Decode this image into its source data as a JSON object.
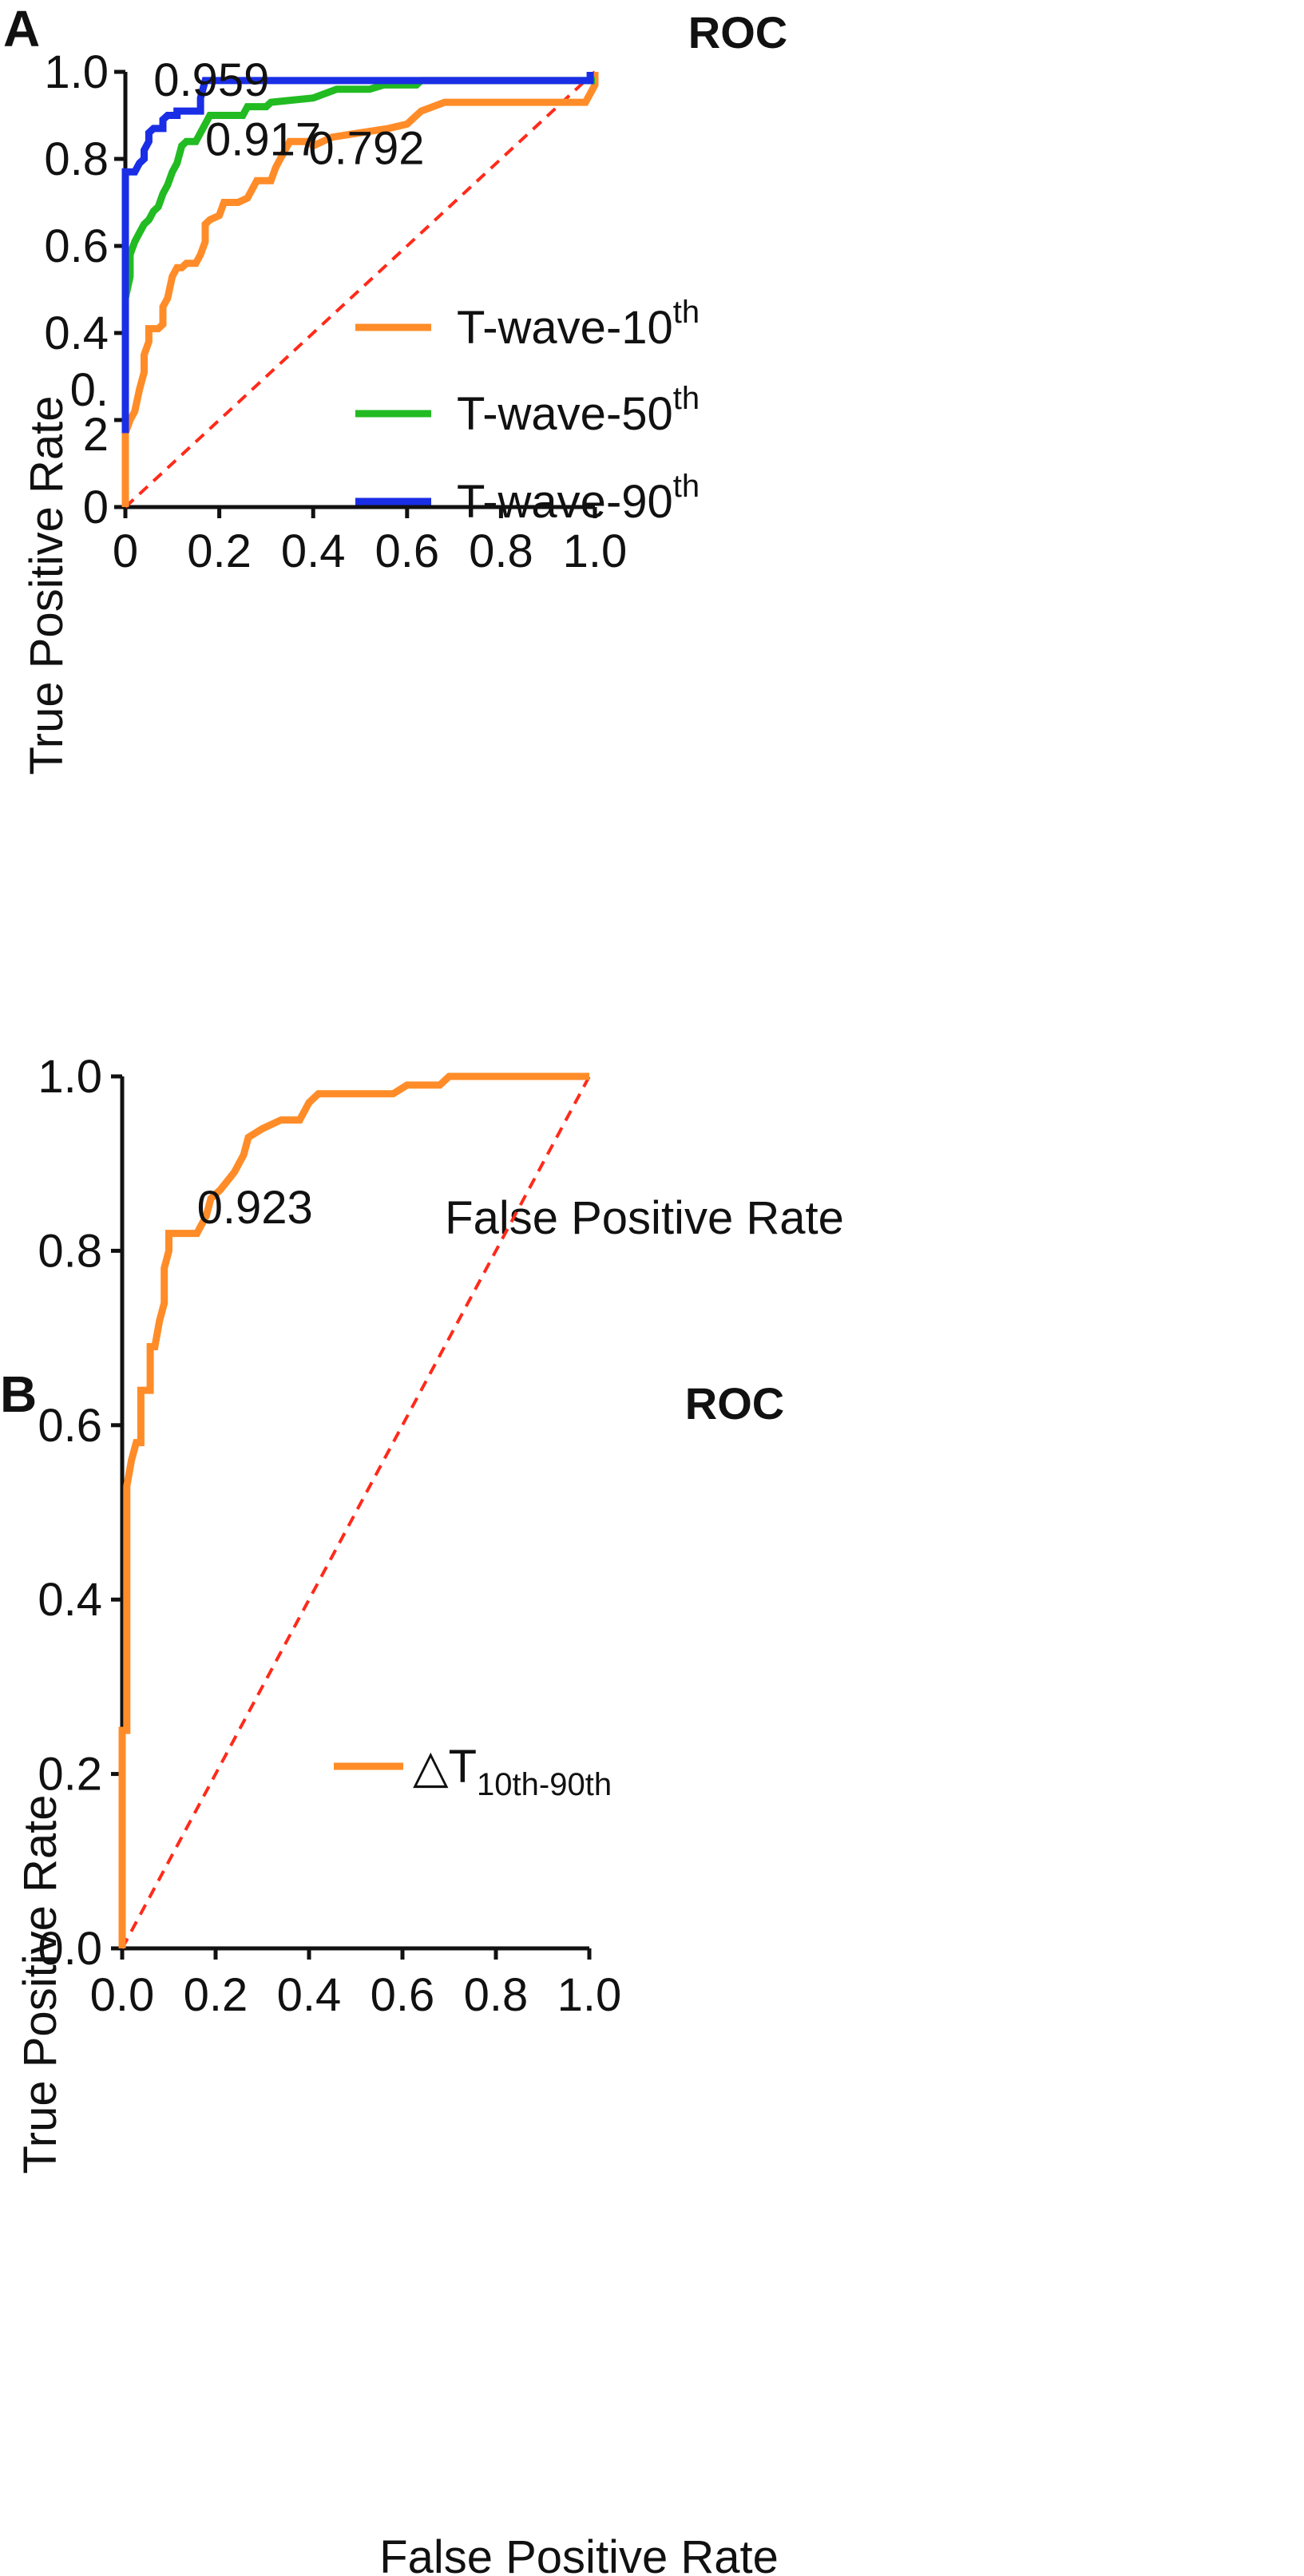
{
  "chart_data": [
    {
      "panel": "A",
      "type": "line",
      "title": "ROC",
      "xlabel": "False Positive Rate",
      "ylabel": "True Positive Rate",
      "xlim": [
        0,
        1
      ],
      "ylim": [
        0,
        1
      ],
      "x_ticks": [
        0,
        0.2,
        0.4,
        0.6,
        0.8,
        1.0
      ],
      "x_tick_labels": [
        "0",
        "0.2",
        "0.4",
        "0.6",
        "0.8",
        "1.0"
      ],
      "y_ticks": [
        0,
        0.2,
        0.4,
        0.6,
        0.8,
        1.0
      ],
      "y_tick_labels": [
        "0",
        "0.\n2",
        "0.4",
        "0.6",
        "0.8",
        "1.0"
      ],
      "legend_position": "center-right",
      "reference_line": {
        "from": [
          0,
          0
        ],
        "to": [
          1,
          1
        ],
        "color": "#ff2a1a",
        "style": "dashed"
      },
      "series": [
        {
          "name": "T-wave-10th",
          "legend_base": "T-wave-10",
          "legend_sup": "th",
          "color": "#ff8c28",
          "auc_label": "0.792",
          "auc_label_at": [
            0.39,
            0.825
          ],
          "points": [
            [
              0,
              0
            ],
            [
              0,
              0.17
            ],
            [
              0.01,
              0.2
            ],
            [
              0.02,
              0.22
            ],
            [
              0.03,
              0.27
            ],
            [
              0.04,
              0.31
            ],
            [
              0.04,
              0.35
            ],
            [
              0.05,
              0.38
            ],
            [
              0.05,
              0.41
            ],
            [
              0.07,
              0.41
            ],
            [
              0.08,
              0.42
            ],
            [
              0.08,
              0.46
            ],
            [
              0.09,
              0.48
            ],
            [
              0.1,
              0.53
            ],
            [
              0.11,
              0.55
            ],
            [
              0.12,
              0.55
            ],
            [
              0.13,
              0.56
            ],
            [
              0.15,
              0.56
            ],
            [
              0.16,
              0.58
            ],
            [
              0.17,
              0.61
            ],
            [
              0.17,
              0.65
            ],
            [
              0.18,
              0.66
            ],
            [
              0.2,
              0.67
            ],
            [
              0.21,
              0.7
            ],
            [
              0.24,
              0.7
            ],
            [
              0.26,
              0.71
            ],
            [
              0.28,
              0.75
            ],
            [
              0.31,
              0.75
            ],
            [
              0.32,
              0.78
            ],
            [
              0.33,
              0.8
            ],
            [
              0.35,
              0.84
            ],
            [
              0.39,
              0.84
            ],
            [
              0.4,
              0.83
            ],
            [
              0.44,
              0.85
            ],
            [
              0.5,
              0.86
            ],
            [
              0.56,
              0.87
            ],
            [
              0.6,
              0.88
            ],
            [
              0.63,
              0.91
            ],
            [
              0.68,
              0.93
            ],
            [
              0.76,
              0.93
            ],
            [
              0.8,
              0.93
            ],
            [
              0.98,
              0.93
            ],
            [
              0.99,
              0.95
            ],
            [
              1,
              0.97
            ],
            [
              1,
              1
            ]
          ]
        },
        {
          "name": "T-wave-50th",
          "legend_base": "T-wave-50",
          "legend_sup": "th",
          "color": "#22bb22",
          "auc_label": "0.917",
          "auc_label_at": [
            0.17,
            0.845
          ],
          "points": [
            [
              0,
              0.2
            ],
            [
              0,
              0.48
            ],
            [
              0.01,
              0.53
            ],
            [
              0.01,
              0.58
            ],
            [
              0.02,
              0.61
            ],
            [
              0.03,
              0.63
            ],
            [
              0.04,
              0.65
            ],
            [
              0.05,
              0.66
            ],
            [
              0.06,
              0.68
            ],
            [
              0.07,
              0.69
            ],
            [
              0.08,
              0.72
            ],
            [
              0.09,
              0.74
            ],
            [
              0.1,
              0.77
            ],
            [
              0.11,
              0.79
            ],
            [
              0.12,
              0.83
            ],
            [
              0.13,
              0.84
            ],
            [
              0.15,
              0.84
            ],
            [
              0.16,
              0.86
            ],
            [
              0.17,
              0.88
            ],
            [
              0.18,
              0.9
            ],
            [
              0.25,
              0.9
            ],
            [
              0.26,
              0.92
            ],
            [
              0.3,
              0.92
            ],
            [
              0.31,
              0.93
            ],
            [
              0.4,
              0.94
            ],
            [
              0.45,
              0.96
            ],
            [
              0.52,
              0.96
            ],
            [
              0.55,
              0.97
            ],
            [
              0.62,
              0.97
            ],
            [
              0.63,
              0.98
            ],
            [
              1,
              0.98
            ]
          ]
        },
        {
          "name": "T-wave-90th",
          "legend_base": "T-wave-90",
          "legend_sup": "th",
          "color": "#1a2ee6",
          "auc_label": "0.959",
          "auc_label_at": [
            0.06,
            0.982
          ],
          "points": [
            [
              0,
              0.17
            ],
            [
              0,
              0.77
            ],
            [
              0.02,
              0.77
            ],
            [
              0.03,
              0.79
            ],
            [
              0.04,
              0.8
            ],
            [
              0.04,
              0.82
            ],
            [
              0.05,
              0.84
            ],
            [
              0.05,
              0.86
            ],
            [
              0.06,
              0.87
            ],
            [
              0.08,
              0.87
            ],
            [
              0.08,
              0.89
            ],
            [
              0.09,
              0.9
            ],
            [
              0.11,
              0.9
            ],
            [
              0.11,
              0.91
            ],
            [
              0.16,
              0.91
            ],
            [
              0.16,
              0.94
            ],
            [
              0.17,
              0.98
            ],
            [
              0.99,
              0.98
            ],
            [
              0.99,
              1
            ]
          ]
        }
      ]
    },
    {
      "panel": "B",
      "type": "line",
      "title": "ROC",
      "xlabel": "False Positive Rate",
      "ylabel": "True Positive Rate",
      "xlim": [
        0,
        1
      ],
      "ylim": [
        0,
        1
      ],
      "x_ticks": [
        0,
        0.2,
        0.4,
        0.6,
        0.8,
        1.0
      ],
      "x_tick_labels": [
        "0.0",
        "0.2",
        "0.4",
        "0.6",
        "0.8",
        "1.0"
      ],
      "y_ticks": [
        0,
        0.2,
        0.4,
        0.6,
        0.8,
        1.0
      ],
      "y_tick_labels": [
        "0.0",
        "0.2",
        "0.4",
        "0.6",
        "0.8",
        "1.0"
      ],
      "legend_position": "lower-right",
      "reference_line": {
        "from": [
          0,
          0
        ],
        "to": [
          1,
          1
        ],
        "color": "#ff2a1a",
        "style": "dashed"
      },
      "series": [
        {
          "name": "△T10th-90th",
          "legend_base": "△T",
          "legend_sub": "10th-90th",
          "color": "#ff8c28",
          "auc_label": "0.923",
          "auc_label_at": [
            0.16,
            0.85
          ],
          "points": [
            [
              0,
              0
            ],
            [
              0,
              0.25
            ],
            [
              0.01,
              0.25
            ],
            [
              0.01,
              0.53
            ],
            [
              0.02,
              0.56
            ],
            [
              0.03,
              0.58
            ],
            [
              0.04,
              0.58
            ],
            [
              0.04,
              0.64
            ],
            [
              0.06,
              0.64
            ],
            [
              0.06,
              0.69
            ],
            [
              0.07,
              0.69
            ],
            [
              0.08,
              0.72
            ],
            [
              0.09,
              0.74
            ],
            [
              0.09,
              0.78
            ],
            [
              0.1,
              0.8
            ],
            [
              0.1,
              0.82
            ],
            [
              0.16,
              0.82
            ],
            [
              0.18,
              0.84
            ],
            [
              0.19,
              0.86
            ],
            [
              0.21,
              0.87
            ],
            [
              0.24,
              0.89
            ],
            [
              0.26,
              0.91
            ],
            [
              0.27,
              0.93
            ],
            [
              0.3,
              0.94
            ],
            [
              0.34,
              0.95
            ],
            [
              0.38,
              0.95
            ],
            [
              0.4,
              0.97
            ],
            [
              0.42,
              0.98
            ],
            [
              0.58,
              0.98
            ],
            [
              0.61,
              0.99
            ],
            [
              0.68,
              0.99
            ],
            [
              0.7,
              1
            ],
            [
              1,
              1
            ]
          ]
        }
      ]
    }
  ]
}
